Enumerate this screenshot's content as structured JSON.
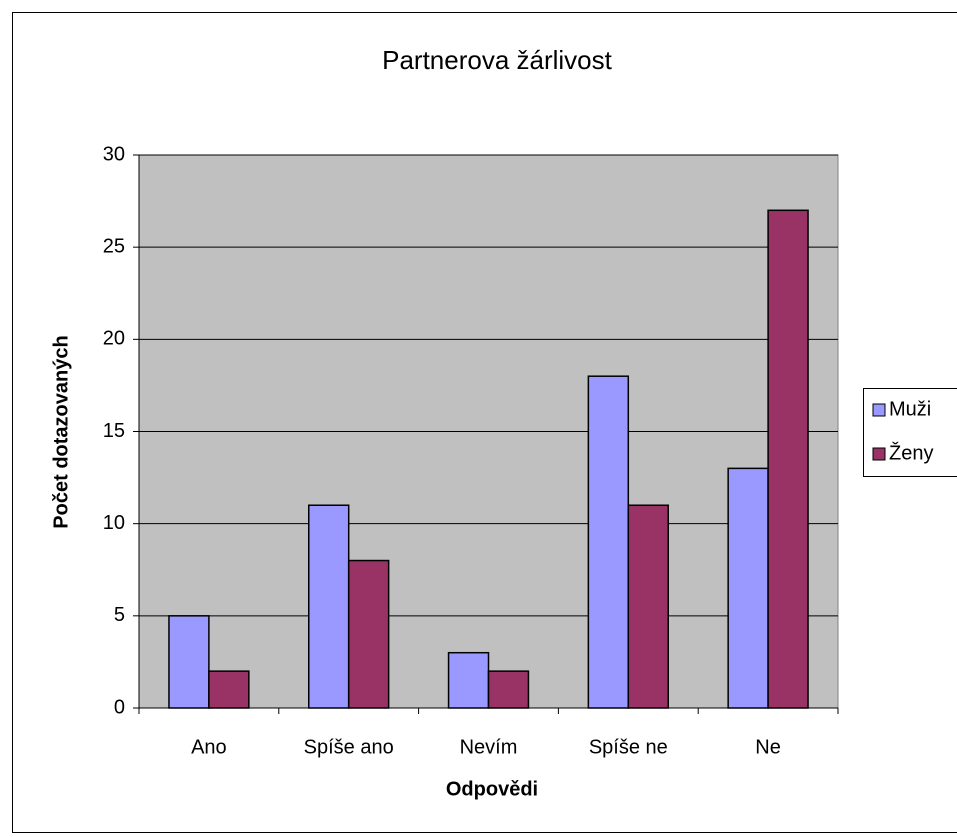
{
  "chart_data": {
    "type": "bar",
    "title": "Partnerova žárlivost",
    "x_label": "Odpovědi",
    "y_label": "Počet dotazovaných",
    "categories": [
      "Ano",
      "Spíše ano",
      "Nevím",
      "Spíše ne",
      "Ne"
    ],
    "series": [
      {
        "name": "Muži",
        "color": "#9999ff",
        "values": [
          5,
          11,
          3,
          18,
          13
        ]
      },
      {
        "name": "Ženy",
        "color": "#993366",
        "values": [
          2,
          8,
          2,
          11,
          27
        ]
      }
    ],
    "ylim": [
      0,
      30
    ],
    "yticks": [
      0,
      5,
      10,
      15,
      20,
      25,
      30
    ],
    "grid": true,
    "legend": "right"
  }
}
